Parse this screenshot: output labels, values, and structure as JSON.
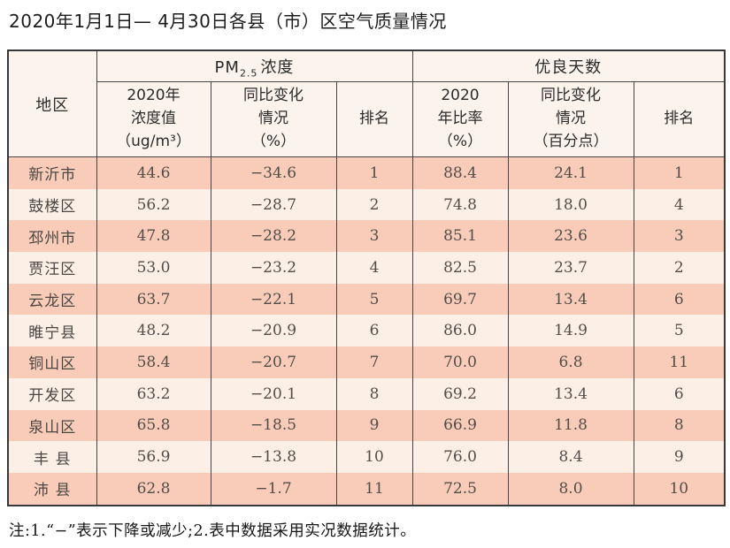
{
  "title": "2020年1月1日— 4月30日各县（市）区空气质量情况",
  "note": "注:1.“−”表示下降或减少;2.表中数据采用实况数据统计。",
  "colors": {
    "row_odd": "#f8ccb8",
    "row_even": "#fcefe6",
    "header_bg": "#fbf3ec",
    "border": "#454545"
  },
  "table": {
    "corner": "地区",
    "group_pm": {
      "prefix": "PM",
      "sub": "2.5",
      "suffix": "浓度"
    },
    "group_good": "优良天数",
    "sub_headers": [
      "2020年\n浓度值\n（ug/m³）",
      "同比变化\n情况\n（%）",
      "排名",
      "2020\n年比率\n（%）",
      "同比变化\n情况\n（百分点）",
      "排名"
    ],
    "rows": [
      [
        "新沂市",
        "44.6",
        "−34.6",
        "1",
        "88.4",
        "24.1",
        "1"
      ],
      [
        "鼓楼区",
        "56.2",
        "−28.7",
        "2",
        "74.8",
        "18.0",
        "4"
      ],
      [
        "邳州市",
        "47.8",
        "−28.2",
        "3",
        "85.1",
        "23.6",
        "3"
      ],
      [
        "贾汪区",
        "53.0",
        "−23.2",
        "4",
        "82.5",
        "23.7",
        "2"
      ],
      [
        "云龙区",
        "63.7",
        "−22.1",
        "5",
        "69.7",
        "13.4",
        "6"
      ],
      [
        "睢宁县",
        "48.2",
        "−20.9",
        "6",
        "86.0",
        "14.9",
        "5"
      ],
      [
        "铜山区",
        "58.4",
        "−20.7",
        "7",
        "70.0",
        "6.8",
        "11"
      ],
      [
        "开发区",
        "63.2",
        "−20.1",
        "8",
        "69.2",
        "13.4",
        "6"
      ],
      [
        "泉山区",
        "65.8",
        "−18.5",
        "9",
        "66.9",
        "11.8",
        "8"
      ],
      [
        "丰 县",
        "56.9",
        "−13.8",
        "10",
        "76.0",
        "8.4",
        "9"
      ],
      [
        "沛 县",
        "62.8",
        "−1.7",
        "11",
        "72.5",
        "8.0",
        "10"
      ]
    ]
  }
}
